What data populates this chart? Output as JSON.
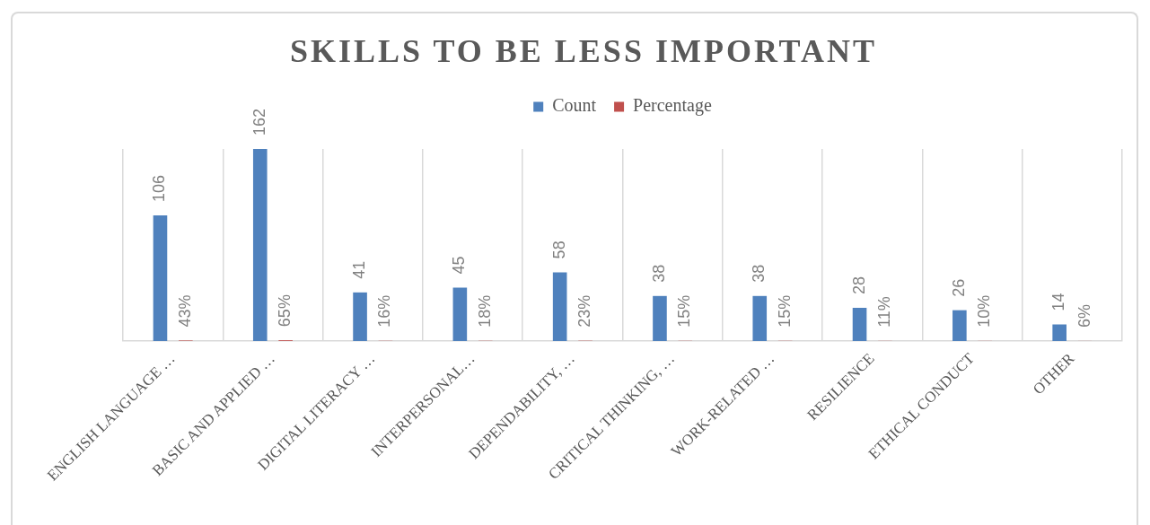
{
  "chart_data": {
    "type": "bar",
    "title": "SKILLS TO BE LESS IMPORTANT",
    "categories": [
      "ENGLISH LANGUAGE …",
      "BASIC AND APPLIED …",
      "DIGITAL LITERACY …",
      "INTERPERSONAL…",
      "DEPENDABILITY, …",
      "CRITICAL THINKING, …",
      "WORK-RELATED …",
      "RESILIENCE",
      "ETHICAL CONDUCT",
      "OTHER"
    ],
    "series": [
      {
        "name": "Count",
        "color": "#4f81bd",
        "values": [
          106,
          162,
          41,
          45,
          58,
          38,
          38,
          28,
          26,
          14
        ],
        "value_labels": [
          "106",
          "162",
          "41",
          "45",
          "58",
          "38",
          "38",
          "28",
          "26",
          "14"
        ]
      },
      {
        "name": "Percentage",
        "color": "#c0504d",
        "values": [
          0.43,
          0.65,
          0.16,
          0.18,
          0.23,
          0.15,
          0.15,
          0.11,
          0.1,
          0.06
        ],
        "value_labels": [
          "43%",
          "65%",
          "16%",
          "18%",
          "23%",
          "15%",
          "15%",
          "11%",
          "10%",
          "6%"
        ]
      }
    ],
    "legend": "top",
    "grid": "x",
    "tick_labels": "x"
  }
}
